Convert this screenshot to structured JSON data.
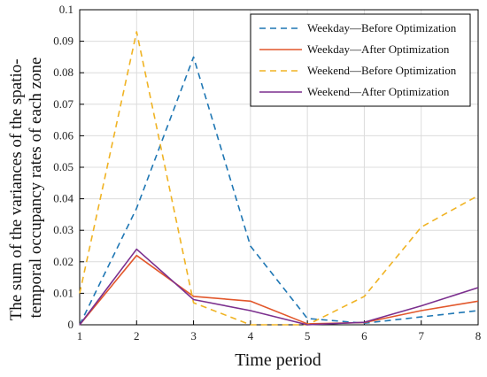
{
  "chart_data": {
    "type": "line",
    "xlabel": "Time period",
    "ylabel": "The sum of the variances of the spatio-temporal occupancy rates of each zone",
    "ylabel_lines": [
      "The sum of the variances of the spatio-",
      "temporal occupancy rates of each zone"
    ],
    "x": [
      1,
      2,
      3,
      4,
      5,
      6,
      7,
      8
    ],
    "xlim": [
      1,
      8
    ],
    "ylim": [
      0,
      0.1
    ],
    "xticks": [
      "1",
      "2",
      "3",
      "4",
      "5",
      "6",
      "7",
      "8"
    ],
    "yticks": [
      "0",
      "0.01",
      "0.02",
      "0.03",
      "0.04",
      "0.05",
      "0.06",
      "0.07",
      "0.08",
      "0.09",
      "0.1"
    ],
    "grid": true,
    "legend_position": "top-right",
    "series": [
      {
        "name": "Weekday—Before Optimization",
        "color": "#1f77b4",
        "dash": "dashed",
        "values": [
          0.0,
          0.037,
          0.085,
          0.025,
          0.002,
          0.0005,
          0.0025,
          0.0045
        ]
      },
      {
        "name": "Weekday—After Optimization",
        "color": "#e2572b",
        "dash": "solid",
        "values": [
          0.0,
          0.022,
          0.009,
          0.0075,
          0.0003,
          0.0007,
          0.0045,
          0.0075
        ]
      },
      {
        "name": "Weekend—Before Optimization",
        "color": "#f0b323",
        "dash": "dashed",
        "values": [
          0.01,
          0.093,
          0.007,
          0.0,
          0.0,
          0.009,
          0.031,
          0.041
        ]
      },
      {
        "name": "Weekend—After Optimization",
        "color": "#7b2f8e",
        "dash": "solid",
        "values": [
          0.0,
          0.024,
          0.008,
          0.0045,
          0.0,
          0.0008,
          0.006,
          0.0118
        ]
      }
    ]
  }
}
